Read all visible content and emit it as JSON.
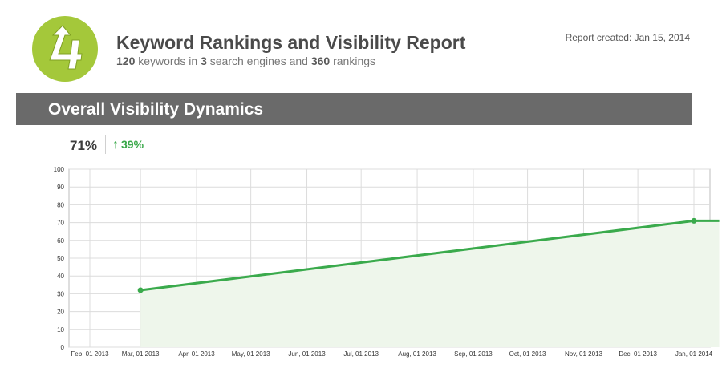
{
  "header": {
    "title": "Keyword Rankings and Visibility Report",
    "subtitle": {
      "keywords_count": "120",
      "keywords_text": " keywords in ",
      "engines_count": "3",
      "engines_text": " search engines and ",
      "rankings_count": "360",
      "rankings_text": " rankings"
    },
    "report_created": "Report created: Jan 15, 2014"
  },
  "logo": {
    "icon": "upward-arrow-4-logo-icon",
    "color": "#a4c83a"
  },
  "section": {
    "title": "Overall Visibility Dynamics"
  },
  "kpi": {
    "value": "71%",
    "change": "39%",
    "change_icon": "arrow-up-icon",
    "change_color": "#3aa84a"
  },
  "chart_data": {
    "type": "area",
    "title": "",
    "xlabel": "",
    "ylabel": "",
    "ylim": [
      0,
      100
    ],
    "yticks": [
      0,
      10,
      20,
      30,
      40,
      50,
      60,
      70,
      80,
      90,
      100
    ],
    "xticks": [
      "Feb, 01 2013",
      "Mar, 01 2013",
      "Apr, 01 2013",
      "May, 01 2013",
      "Jun, 01 2013",
      "Jul, 01 2013",
      "Aug, 01 2013",
      "Sep, 01 2013",
      "Oct, 01 2013",
      "Nov, 01 2013",
      "Dec, 01 2013",
      "Jan, 01 2014"
    ],
    "grid": true,
    "series": [
      {
        "x": [
          "Mar, 01 2013",
          "Jan, 01 2014",
          "Jan, 15 2014"
        ],
        "values": [
          32,
          71,
          71
        ],
        "markers": [
          true,
          true,
          false
        ]
      }
    ],
    "colors": {
      "line": "#3aaa4c",
      "fill": "#eef6eb",
      "grid": "#dcdcdc"
    }
  }
}
